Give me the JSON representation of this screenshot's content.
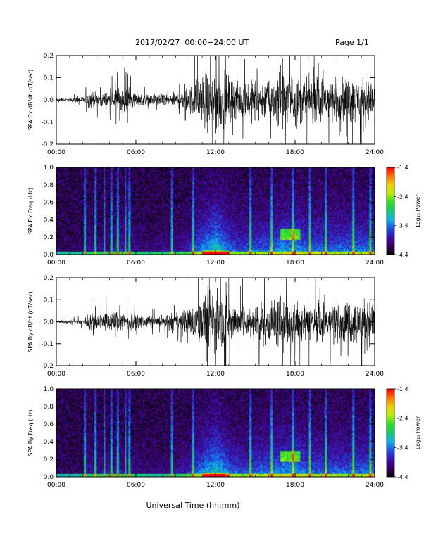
{
  "header": {
    "title": "2017/02/27  00:00−24:00 UT",
    "page": "Page 1/1"
  },
  "colors": {
    "trace": "#000000",
    "colormap": [
      "#000000",
      "#3a0060",
      "#3a10b0",
      "#1f4fe0",
      "#0ab4f0",
      "#18c870",
      "#2be020",
      "#b8f000",
      "#f0d000",
      "#ff7000",
      "#ff0000"
    ]
  },
  "colorbar": {
    "label": "Log₁₀ Power",
    "ticks": [
      "-1.4",
      "-2.4",
      "-3.4",
      "-4.4"
    ],
    "range": [
      -4.4,
      -1.4
    ]
  },
  "chart_data": [
    {
      "type": "line",
      "ylabel": "SPA Bx dB/dt (nT/sec)",
      "xlim": [
        "00:00",
        "24:00"
      ],
      "ylim": [
        -0.2,
        0.2
      ],
      "yticks": [
        "0.2",
        "0.1",
        "0.0",
        "-0.1",
        "-0.2"
      ],
      "xticks": [
        "00:00",
        "06:00",
        "12:00",
        "18:00",
        "24:00"
      ],
      "envelope": {
        "hours": [
          0,
          1,
          2,
          2.5,
          3,
          4,
          5,
          6,
          7,
          8,
          9,
          10,
          11,
          12,
          13,
          14,
          15,
          16,
          17,
          18,
          19,
          20,
          21,
          22,
          23,
          24
        ],
        "amplitude": [
          0.01,
          0.01,
          0.02,
          0.05,
          0.04,
          0.05,
          0.08,
          0.04,
          0.03,
          0.04,
          0.04,
          0.08,
          0.15,
          0.2,
          0.13,
          0.1,
          0.12,
          0.12,
          0.15,
          0.16,
          0.12,
          0.13,
          0.12,
          0.13,
          0.13,
          0.12
        ]
      }
    },
    {
      "type": "heatmap",
      "ylabel": "SPA Bx Freq (Hz)",
      "xlim": [
        "00:00",
        "24:00"
      ],
      "ylim": [
        0.0,
        1.0
      ],
      "yticks": [
        "1.0",
        "0.8",
        "0.6",
        "0.4",
        "0.2",
        "0.0"
      ],
      "xticks": [
        "00:00",
        "06:00",
        "12:00",
        "18:00",
        "24:00"
      ],
      "zlim": [
        -4.4,
        -1.4
      ]
    },
    {
      "type": "line",
      "ylabel": "SPA By dB/dt (nT/sec)",
      "xlim": [
        "00:00",
        "24:00"
      ],
      "ylim": [
        -0.2,
        0.2
      ],
      "yticks": [
        "0.2",
        "0.1",
        "0.0",
        "-0.1",
        "-0.2"
      ],
      "xticks": [
        "00:00",
        "06:00",
        "12:00",
        "18:00",
        "24:00"
      ],
      "envelope": {
        "hours": [
          0,
          1,
          2,
          2.5,
          3,
          4,
          5,
          6,
          7,
          8,
          9,
          10,
          11,
          12,
          13,
          14,
          15,
          16,
          17,
          18,
          19,
          20,
          21,
          22,
          23,
          24
        ],
        "amplitude": [
          0.01,
          0.01,
          0.015,
          0.06,
          0.05,
          0.06,
          0.06,
          0.04,
          0.03,
          0.03,
          0.05,
          0.08,
          0.15,
          0.2,
          0.13,
          0.1,
          0.12,
          0.13,
          0.15,
          0.16,
          0.12,
          0.12,
          0.12,
          0.12,
          0.13,
          0.13
        ]
      }
    },
    {
      "type": "heatmap",
      "ylabel": "SPA By Freq (Hz)",
      "xlim": [
        "00:00",
        "24:00"
      ],
      "ylim": [
        0.0,
        1.0
      ],
      "yticks": [
        "1.0",
        "0.8",
        "0.6",
        "0.4",
        "0.2",
        "0.0"
      ],
      "xticks": [
        "00:00",
        "06:00",
        "12:00",
        "18:00",
        "24:00"
      ],
      "zlim": [
        -4.4,
        -1.4
      ]
    }
  ],
  "xaxis_label": "Universal Time (hh:mm)"
}
